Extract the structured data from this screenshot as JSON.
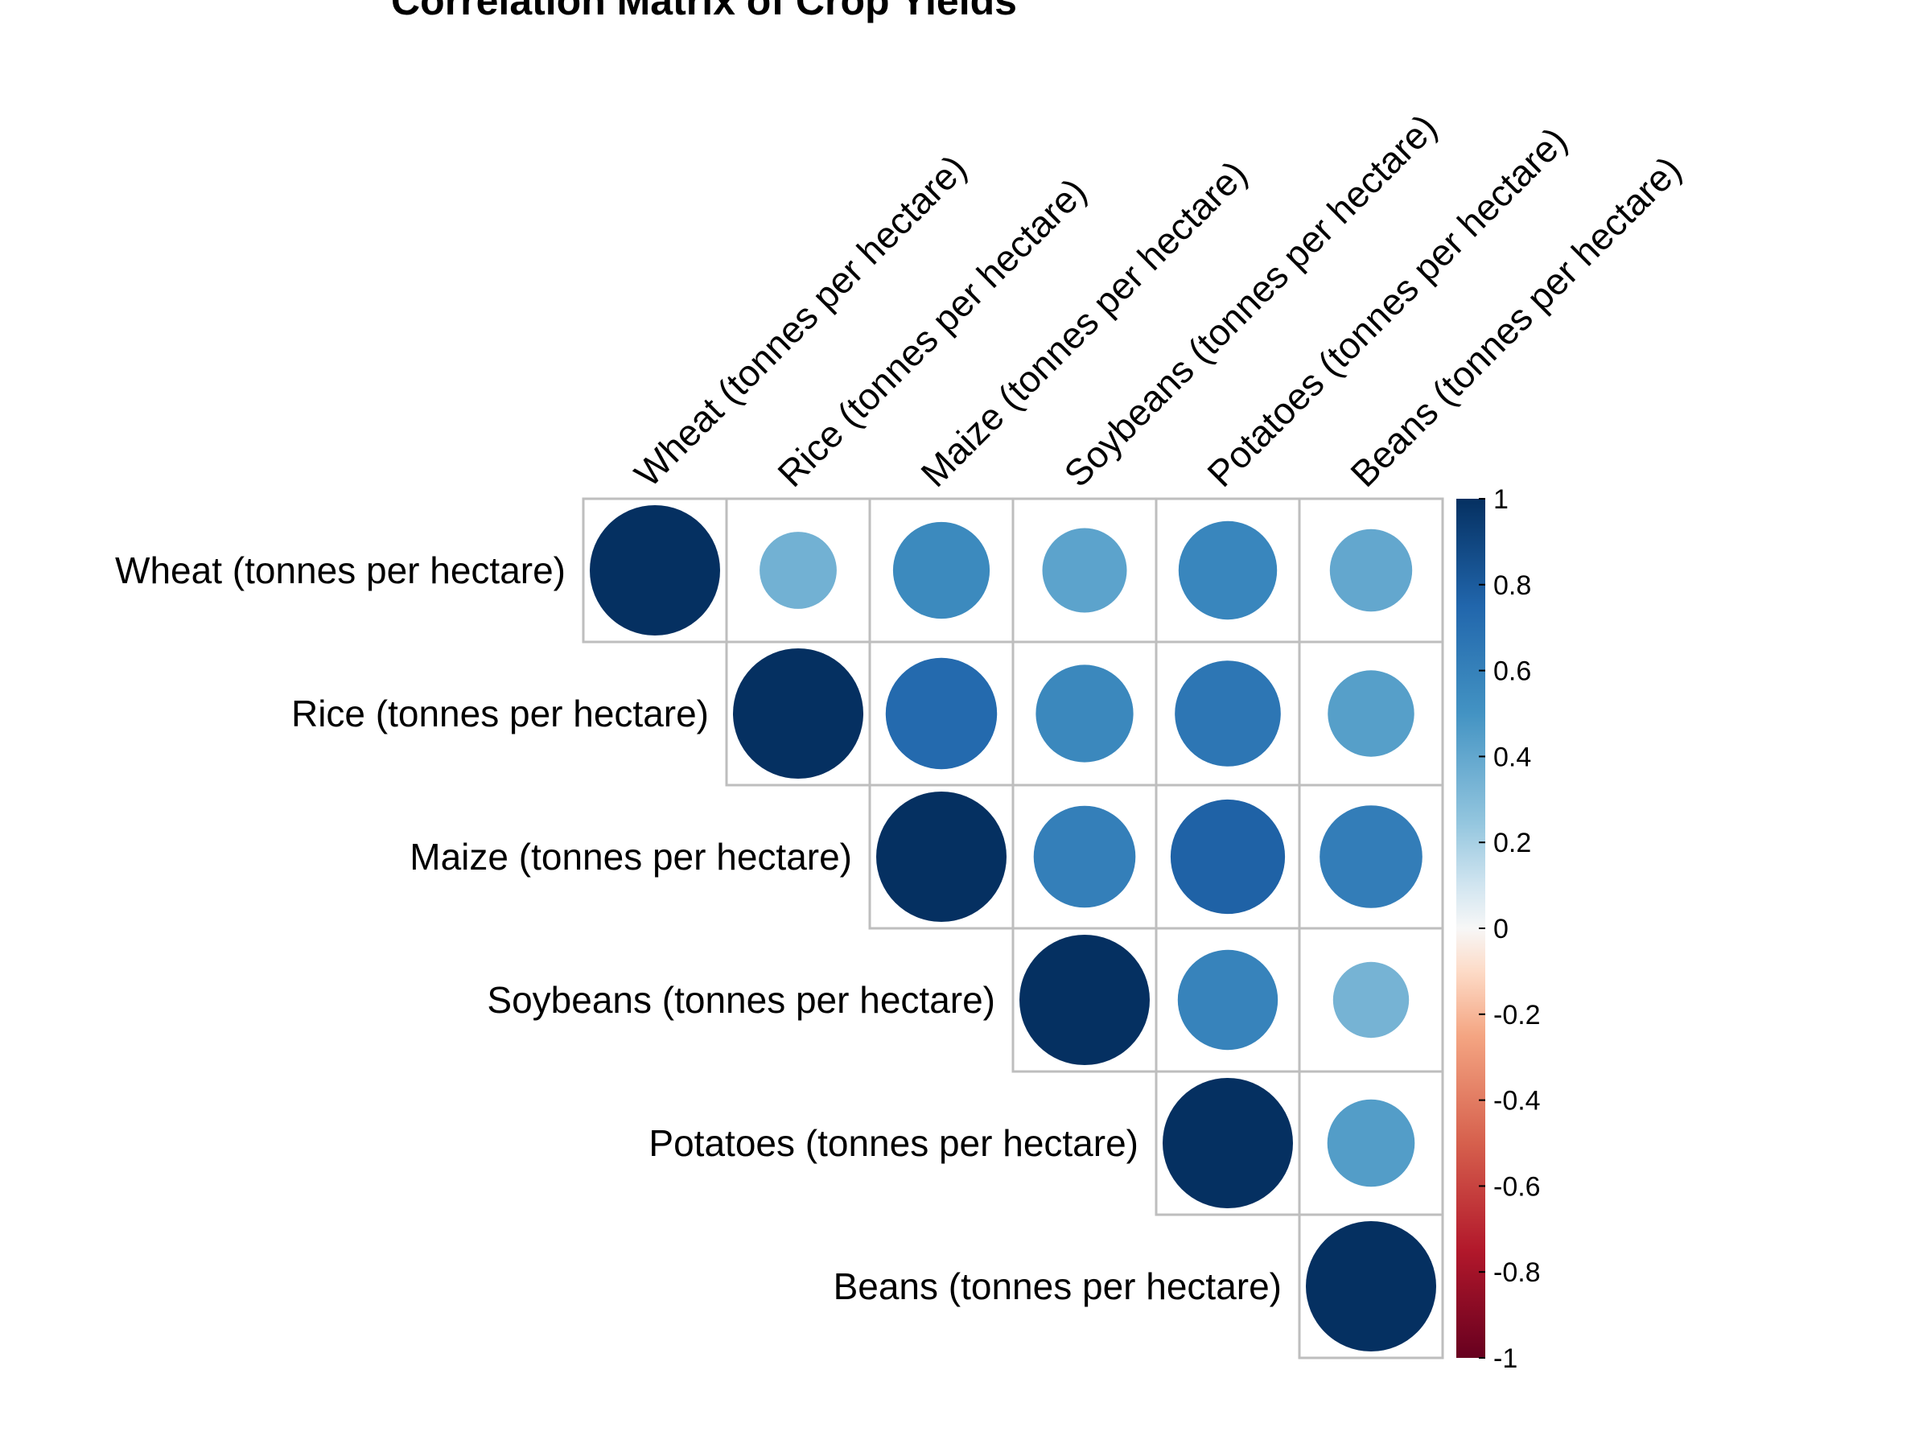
{
  "chart_data": {
    "type": "heatmap",
    "subtype": "correlation-circles-upper-triangle",
    "title": "Correlation Matrix of Crop Yields",
    "variables": [
      "Wheat (tonnes per hectare)",
      "Rice (tonnes per hectare)",
      "Maize (tonnes per hectare)",
      "Soybeans (tonnes per hectare)",
      "Potatoes (tonnes per hectare)",
      "Beans (tonnes per hectare)"
    ],
    "matrix": [
      [
        1.0,
        0.35,
        0.55,
        0.42,
        0.57,
        0.4
      ],
      [
        0.35,
        1.0,
        0.73,
        0.56,
        0.66,
        0.44
      ],
      [
        0.55,
        0.73,
        1.0,
        0.61,
        0.77,
        0.62
      ],
      [
        0.42,
        0.56,
        0.61,
        1.0,
        0.59,
        0.34
      ],
      [
        0.57,
        0.66,
        0.77,
        0.59,
        1.0,
        0.45
      ],
      [
        0.4,
        0.44,
        0.62,
        0.34,
        0.45,
        1.0
      ]
    ],
    "show": "upper",
    "legend": {
      "position": "right",
      "range": [
        -1,
        1
      ],
      "ticks": [
        "1",
        "0.8",
        "0.6",
        "0.4",
        "0.2",
        "0",
        "-0.2",
        "-0.4",
        "-0.6",
        "-0.8",
        "-1"
      ]
    },
    "colors": {
      "positive_high": "#053061",
      "positive_mid": "#4393C3",
      "zero": "#F7F7F7",
      "negative_mid": "#D6604D",
      "negative_high": "#67001F",
      "grid": "#BEBEBE"
    }
  }
}
